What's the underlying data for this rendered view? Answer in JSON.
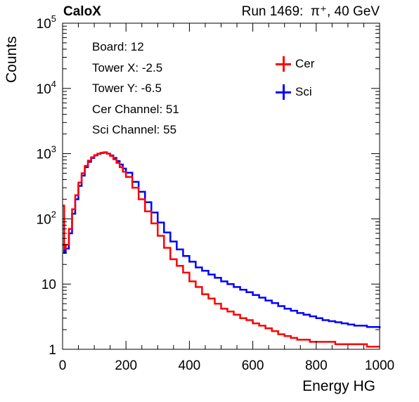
{
  "header": {
    "experiment": "CaloX",
    "run_label": "Run 1469:",
    "particle": "π⁺, 40 GeV"
  },
  "info_box": [
    "Board: 12",
    "Tower X: -2.5",
    "Tower Y: -6.5",
    "Cer Channel: 51",
    "Sci Channel: 55"
  ],
  "colors": {
    "cer": "#ff0000",
    "sci": "#0000ff"
  },
  "chart_data": {
    "type": "histogram",
    "title": "",
    "xlabel": "Energy HG",
    "ylabel": "Counts",
    "xlim": [
      0,
      1000
    ],
    "ylim": [
      1,
      100000
    ],
    "y_scale": "log",
    "grid": false,
    "legend_position": "top-right",
    "x_ticks": [
      "0",
      "200",
      "400",
      "600",
      "800",
      "1000"
    ],
    "y_ticks": [
      {
        "value": 1,
        "label": "1"
      },
      {
        "value": 10,
        "label": "10"
      },
      {
        "value": 100,
        "label": "10^2"
      },
      {
        "value": 1000,
        "label": "10^3"
      },
      {
        "value": 10000,
        "label": "10^4"
      },
      {
        "value": 100000,
        "label": "10^5"
      }
    ],
    "series": [
      {
        "name": "Cer",
        "color": "#ff0000",
        "x": [
          0,
          5,
          10,
          20,
          30,
          40,
          50,
          60,
          70,
          80,
          90,
          100,
          110,
          120,
          130,
          140,
          150,
          160,
          170,
          180,
          190,
          200,
          220,
          240,
          260,
          280,
          300,
          320,
          340,
          360,
          380,
          400,
          420,
          440,
          460,
          480,
          500,
          520,
          540,
          560,
          580,
          600,
          620,
          640,
          660,
          680,
          700,
          720,
          740,
          760,
          780,
          800,
          820,
          840,
          860,
          880,
          900,
          920,
          940,
          960,
          980,
          1000
        ],
        "counts": [
          160,
          35,
          40,
          70,
          140,
          230,
          360,
          500,
          650,
          780,
          880,
          950,
          1000,
          1030,
          1050,
          1000,
          920,
          820,
          720,
          620,
          530,
          440,
          300,
          200,
          130,
          85,
          55,
          36,
          24,
          19,
          15,
          11,
          9,
          7,
          6,
          5,
          4.2,
          3.8,
          3.4,
          3,
          2.8,
          2.5,
          2.3,
          2.1,
          1.9,
          1.7,
          1.6,
          1.5,
          1.4,
          1.4,
          1.3,
          1.3,
          1.3,
          1.3,
          1.2,
          1.2,
          1.2,
          1.2,
          1.2,
          1.1,
          1.1,
          1.1
        ]
      },
      {
        "name": "Sci",
        "color": "#0000ff",
        "x": [
          0,
          5,
          10,
          20,
          30,
          40,
          50,
          60,
          70,
          80,
          90,
          100,
          110,
          120,
          130,
          140,
          150,
          160,
          170,
          180,
          190,
          200,
          220,
          240,
          260,
          280,
          300,
          320,
          340,
          360,
          380,
          400,
          420,
          440,
          460,
          480,
          500,
          520,
          540,
          560,
          580,
          600,
          620,
          640,
          660,
          680,
          700,
          720,
          740,
          760,
          780,
          800,
          820,
          840,
          860,
          880,
          900,
          920,
          940,
          960,
          980,
          1000
        ],
        "counts": [
          40,
          30,
          35,
          60,
          120,
          200,
          320,
          460,
          620,
          750,
          860,
          940,
          990,
          1020,
          1040,
          1000,
          940,
          860,
          770,
          680,
          590,
          510,
          370,
          260,
          180,
          125,
          88,
          62,
          45,
          34,
          27,
          22,
          18,
          16,
          14,
          12.5,
          11,
          10,
          9,
          8.2,
          7.5,
          6.8,
          6.2,
          5.6,
          5.1,
          4.6,
          4.2,
          3.9,
          3.6,
          3.4,
          3.2,
          3,
          2.8,
          2.7,
          2.6,
          2.5,
          2.4,
          2.3,
          2.3,
          2.2,
          2.2,
          2.1
        ]
      }
    ]
  }
}
